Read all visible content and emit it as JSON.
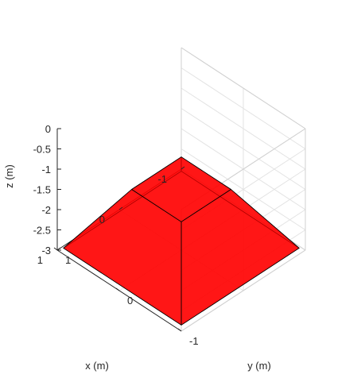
{
  "chart_data": {
    "type": "surface3d",
    "xlabel": "x (m)",
    "ylabel": "y (m)",
    "zlabel": "z (m)",
    "x_ticks": [
      {
        "value": 1,
        "label": "1"
      },
      {
        "value": 0,
        "label": "0"
      },
      {
        "value": -1,
        "label": "-1"
      }
    ],
    "y_ticks": [
      {
        "value": 1,
        "label": "1"
      },
      {
        "value": 0,
        "label": "0"
      },
      {
        "value": -1,
        "label": "-1"
      }
    ],
    "z_ticks": [
      {
        "value": 0,
        "label": "0"
      },
      {
        "value": -0.5,
        "label": "-0.5"
      },
      {
        "value": -1,
        "label": "-1"
      },
      {
        "value": -1.5,
        "label": "-1.5"
      },
      {
        "value": -2,
        "label": "-2"
      },
      {
        "value": -2.5,
        "label": "-2.5"
      },
      {
        "value": -3,
        "label": "-3"
      }
    ],
    "xlim": [
      -1,
      1
    ],
    "ylim": [
      -1,
      1
    ],
    "zlim": [
      -3,
      0
    ],
    "grid": true,
    "box": true,
    "face_color": "#ff0000",
    "face_alpha": 0.7,
    "edge_color": "#000000",
    "solid": {
      "name": "frustum",
      "vertices": [
        [
          0.4,
          0.4,
          -1.5
        ],
        [
          -0.4,
          0.4,
          -1.5
        ],
        [
          -0.4,
          -0.4,
          -1.5
        ],
        [
          0.4,
          -0.4,
          -1.5
        ],
        [
          0.95,
          0.95,
          -2.95
        ],
        [
          -0.95,
          0.95,
          -2.95
        ],
        [
          -0.95,
          -0.95,
          -2.95
        ],
        [
          0.95,
          -0.95,
          -2.95
        ]
      ],
      "faces": [
        [
          4,
          5,
          6,
          7
        ],
        [
          0,
          1,
          5,
          4
        ],
        [
          1,
          2,
          6,
          5
        ],
        [
          2,
          3,
          7,
          6
        ],
        [
          3,
          0,
          4,
          7
        ],
        [
          0,
          1,
          2,
          3
        ]
      ]
    }
  }
}
